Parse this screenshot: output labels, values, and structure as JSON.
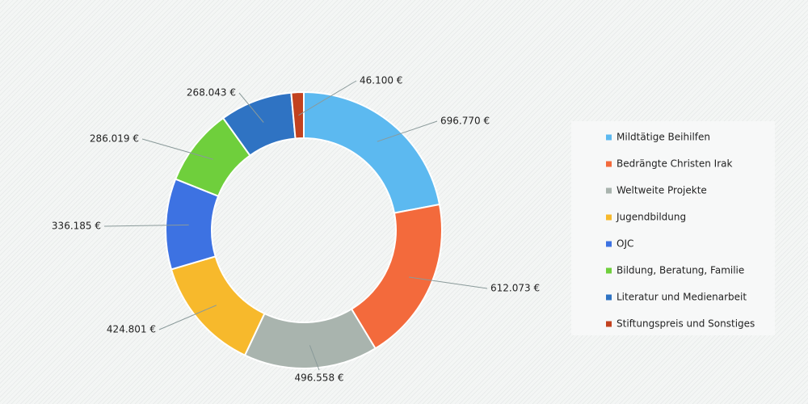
{
  "chart_data": {
    "type": "donut",
    "categories": [
      "Mildtätige Beihilfen",
      "Bedrängte Christen Irak",
      "Weltweite Projekte",
      "Jugendbildung",
      "OJC",
      "Bildung, Beratung, Familie",
      "Literatur und Medienarbeit",
      "Stiftungspreis und Sonstiges"
    ],
    "values": [
      696770,
      612073,
      496558,
      424801,
      336185,
      286019,
      268043,
      46100
    ],
    "value_labels": [
      "696.770 €",
      "612.073 €",
      "496.558 €",
      "424.801 €",
      "336.185 €",
      "286.019 €",
      "268.043 €",
      "46.100 €"
    ],
    "colors": [
      "#5cb9f0",
      "#f36a3c",
      "#a9b4ae",
      "#f7b92c",
      "#3d72e2",
      "#6fcf3c",
      "#2f73c3",
      "#c2421f"
    ],
    "legend": "right"
  }
}
